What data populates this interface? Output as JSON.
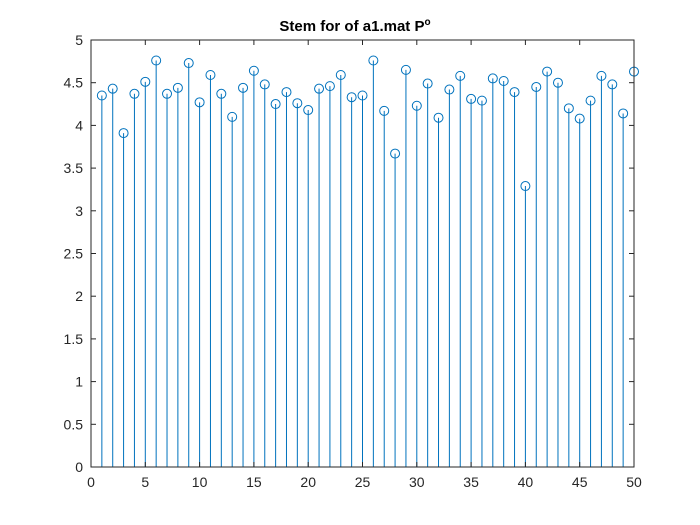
{
  "chart_data": {
    "type": "stem",
    "title": "Stem for of a1.mat P",
    "title_superscript": "o",
    "xlabel": "",
    "ylabel": "",
    "xlim": [
      0,
      50
    ],
    "ylim": [
      0,
      5
    ],
    "x_ticks": [
      0,
      5,
      10,
      15,
      20,
      25,
      30,
      35,
      40,
      45,
      50
    ],
    "y_ticks": [
      0,
      0.5,
      1,
      1.5,
      2,
      2.5,
      3,
      3.5,
      4,
      4.5,
      5
    ],
    "grid": false,
    "legend": false,
    "stem_color": "#0072bd",
    "axis_color": "#262626",
    "x": [
      1,
      2,
      3,
      4,
      5,
      6,
      7,
      8,
      9,
      10,
      11,
      12,
      13,
      14,
      15,
      16,
      17,
      18,
      19,
      20,
      21,
      22,
      23,
      24,
      25,
      26,
      27,
      28,
      29,
      30,
      31,
      32,
      33,
      34,
      35,
      36,
      37,
      38,
      39,
      40,
      41,
      42,
      43,
      44,
      45,
      46,
      47,
      48,
      49,
      50
    ],
    "values": [
      4.35,
      4.43,
      3.91,
      4.37,
      4.51,
      4.76,
      4.37,
      4.44,
      4.73,
      4.27,
      4.59,
      4.37,
      4.1,
      4.44,
      4.64,
      4.48,
      4.25,
      4.39,
      4.26,
      4.18,
      4.43,
      4.46,
      4.59,
      4.33,
      4.35,
      4.76,
      4.17,
      3.67,
      4.65,
      4.23,
      4.49,
      4.09,
      4.42,
      4.58,
      4.31,
      4.29,
      4.55,
      4.52,
      4.39,
      3.29,
      4.45,
      4.63,
      4.5,
      4.2,
      4.08,
      4.29,
      4.58,
      4.48,
      4.14,
      4.63
    ]
  }
}
